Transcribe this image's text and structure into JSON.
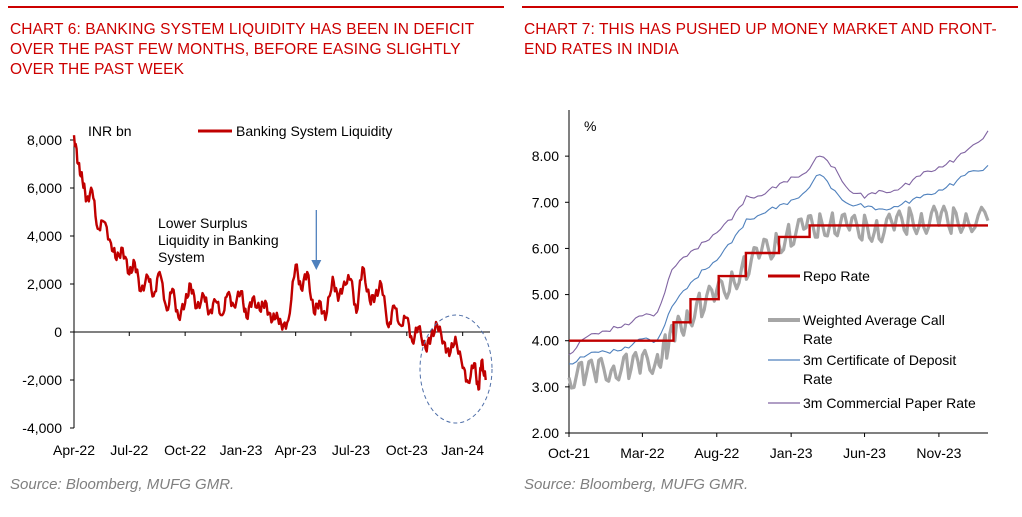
{
  "chart_data": [
    {
      "type": "line",
      "title": "Chart 6: Banking system liquidity has been in deficit over the past few months, before easing slightly over the past week",
      "unit_label": "INR bn",
      "source": "Source: Bloomberg, MUFG GMR.",
      "ylim": [
        -4000,
        8000
      ],
      "yticks": [
        "8,000",
        "6,000",
        "4,000",
        "2,000",
        "0",
        "-2,000",
        "-4,000"
      ],
      "yticks_values": [
        8000,
        6000,
        4000,
        2000,
        0,
        -2000,
        -4000
      ],
      "xticks": [
        "Apr-22",
        "Jul-22",
        "Oct-22",
        "Jan-23",
        "Apr-23",
        "Jul-23",
        "Oct-23",
        "Jan-24"
      ],
      "x_range": [
        "2022-04-01",
        "2024-02-15"
      ],
      "grid": false,
      "legend_position": "top",
      "annotation": {
        "text": [
          "Lower Surplus",
          "Liquidity in Banking",
          "System"
        ],
        "arrow_at": "2023-05-05"
      },
      "highlight_region": {
        "shape": "dashed ellipse",
        "around": "Oct-23 to Feb-24"
      },
      "series": [
        {
          "name": "Banking System Liquidity",
          "color": "#c00000",
          "x": [
            "2022-04-01",
            "2022-04-08",
            "2022-04-15",
            "2022-04-22",
            "2022-05-01",
            "2022-05-10",
            "2022-05-20",
            "2022-06-01",
            "2022-06-10",
            "2022-06-20",
            "2022-07-01",
            "2022-07-10",
            "2022-07-20",
            "2022-08-01",
            "2022-08-10",
            "2022-08-20",
            "2022-09-01",
            "2022-09-10",
            "2022-09-20",
            "2022-10-01",
            "2022-10-10",
            "2022-10-20",
            "2022-11-01",
            "2022-11-10",
            "2022-11-20",
            "2022-12-01",
            "2022-12-10",
            "2022-12-20",
            "2023-01-01",
            "2023-01-10",
            "2023-01-20",
            "2023-02-01",
            "2023-02-10",
            "2023-02-20",
            "2023-03-01",
            "2023-03-10",
            "2023-03-20",
            "2023-04-01",
            "2023-04-10",
            "2023-04-20",
            "2023-05-01",
            "2023-05-10",
            "2023-05-20",
            "2023-06-01",
            "2023-06-10",
            "2023-06-20",
            "2023-07-01",
            "2023-07-10",
            "2023-07-20",
            "2023-08-01",
            "2023-08-10",
            "2023-08-20",
            "2023-09-01",
            "2023-09-10",
            "2023-09-20",
            "2023-10-01",
            "2023-10-10",
            "2023-10-20",
            "2023-11-01",
            "2023-11-10",
            "2023-11-20",
            "2023-12-01",
            "2023-12-10",
            "2023-12-20",
            "2024-01-01",
            "2024-01-10",
            "2024-01-20",
            "2024-01-27",
            "2024-02-01",
            "2024-02-08"
          ],
          "values": [
            8200,
            7000,
            6300,
            5500,
            5900,
            4300,
            4600,
            3700,
            3000,
            3500,
            2400,
            2900,
            1700,
            2300,
            1500,
            2500,
            900,
            1800,
            600,
            1200,
            2000,
            1000,
            1500,
            800,
            1300,
            700,
            1600,
            1100,
            1700,
            600,
            1400,
            900,
            1300,
            400,
            800,
            100,
            500,
            2800,
            1800,
            2500,
            800,
            1300,
            500,
            2300,
            1300,
            2100,
            2200,
            800,
            2700,
            1300,
            1500,
            2000,
            200,
            1100,
            300,
            600,
            -400,
            200,
            -700,
            -200,
            300,
            -400,
            -1000,
            -200,
            -1500,
            -2100,
            -1300,
            -2400,
            -1200,
            -2000
          ]
        }
      ]
    },
    {
      "type": "line",
      "title": "Chart 7: This has pushed up money market and front-end rates in India",
      "unit_label": "%",
      "source": "Source: Bloomberg, MUFG GMR.",
      "ylim": [
        2,
        9
      ],
      "yticks": [
        "8.00",
        "7.00",
        "6.00",
        "5.00",
        "4.00",
        "3.00",
        "2.00"
      ],
      "yticks_values": [
        8,
        7,
        6,
        5,
        4,
        3,
        2
      ],
      "xticks": [
        "Oct-21",
        "Mar-22",
        "Aug-22",
        "Jan-23",
        "Jun-23",
        "Nov-23"
      ],
      "x_range": [
        "2021-10-01",
        "2024-02-10"
      ],
      "grid": false,
      "legend_position": "right",
      "series": [
        {
          "name": "Repo Rate",
          "color": "#c00000",
          "x": [
            "2021-10-01",
            "2022-05-04",
            "2022-06-08",
            "2022-08-05",
            "2022-09-30",
            "2022-12-07",
            "2023-02-08",
            "2024-02-10"
          ],
          "values": [
            4.0,
            4.4,
            4.9,
            5.4,
            5.9,
            6.25,
            6.5,
            6.5
          ]
        },
        {
          "name": "Weighted Average Call Rate",
          "color": "#a6a6a6",
          "x": [
            "2021-10-01",
            "2021-11-01",
            "2021-12-01",
            "2022-01-01",
            "2022-02-01",
            "2022-03-01",
            "2022-04-01",
            "2022-04-20",
            "2022-05-10",
            "2022-06-01",
            "2022-07-01",
            "2022-08-01",
            "2022-09-01",
            "2022-10-01",
            "2022-11-01",
            "2022-12-01",
            "2023-01-01",
            "2023-02-01",
            "2023-03-01",
            "2023-04-01",
            "2023-05-01",
            "2023-06-01",
            "2023-07-01",
            "2023-08-01",
            "2023-09-01",
            "2023-10-01",
            "2023-11-01",
            "2023-12-01",
            "2024-01-01",
            "2024-02-10"
          ],
          "values": [
            3.2,
            3.3,
            3.35,
            3.4,
            3.45,
            3.5,
            3.6,
            3.9,
            4.2,
            4.5,
            4.8,
            5.0,
            5.3,
            5.6,
            5.9,
            6.1,
            6.3,
            6.45,
            6.5,
            6.55,
            6.45,
            6.45,
            6.4,
            6.5,
            6.6,
            6.6,
            6.65,
            6.6,
            6.65,
            6.6
          ]
        },
        {
          "name": "3m Certificate of Deposit Rate",
          "color": "#4f81bd",
          "x": [
            "2021-10-01",
            "2021-11-01",
            "2021-12-01",
            "2022-01-01",
            "2022-02-01",
            "2022-03-01",
            "2022-04-01",
            "2022-05-01",
            "2022-06-01",
            "2022-07-01",
            "2022-08-01",
            "2022-09-01",
            "2022-10-01",
            "2022-11-01",
            "2022-12-01",
            "2023-01-01",
            "2023-02-01",
            "2023-03-01",
            "2023-04-01",
            "2023-05-01",
            "2023-06-01",
            "2023-07-01",
            "2023-08-01",
            "2023-09-01",
            "2023-10-01",
            "2023-11-01",
            "2023-12-01",
            "2024-01-01",
            "2024-02-10"
          ],
          "values": [
            3.5,
            3.7,
            3.7,
            3.8,
            3.9,
            4.0,
            4.0,
            4.8,
            5.1,
            5.5,
            5.8,
            6.1,
            6.6,
            6.8,
            6.85,
            7.0,
            7.3,
            7.6,
            7.2,
            7.0,
            6.9,
            6.8,
            6.95,
            7.0,
            7.1,
            7.3,
            7.4,
            7.6,
            7.8
          ]
        },
        {
          "name": "3m Commercial Paper Rate",
          "color": "#8064a2",
          "x": [
            "2021-10-01",
            "2021-11-01",
            "2021-12-01",
            "2022-01-01",
            "2022-02-01",
            "2022-03-01",
            "2022-04-01",
            "2022-05-01",
            "2022-06-01",
            "2022-07-01",
            "2022-08-01",
            "2022-09-01",
            "2022-10-01",
            "2022-11-01",
            "2022-12-01",
            "2023-01-01",
            "2023-02-01",
            "2023-03-01",
            "2023-04-01",
            "2023-05-01",
            "2023-06-01",
            "2023-07-01",
            "2023-08-01",
            "2023-09-01",
            "2023-10-01",
            "2023-11-01",
            "2023-12-01",
            "2024-01-01",
            "2024-02-10"
          ],
          "values": [
            3.7,
            4.1,
            4.1,
            4.3,
            4.4,
            4.5,
            4.6,
            5.6,
            5.8,
            6.1,
            6.4,
            6.6,
            7.1,
            7.2,
            7.3,
            7.5,
            7.7,
            8.0,
            7.7,
            7.3,
            7.1,
            7.2,
            7.3,
            7.4,
            7.6,
            7.8,
            7.9,
            8.1,
            8.55
          ]
        }
      ]
    }
  ]
}
